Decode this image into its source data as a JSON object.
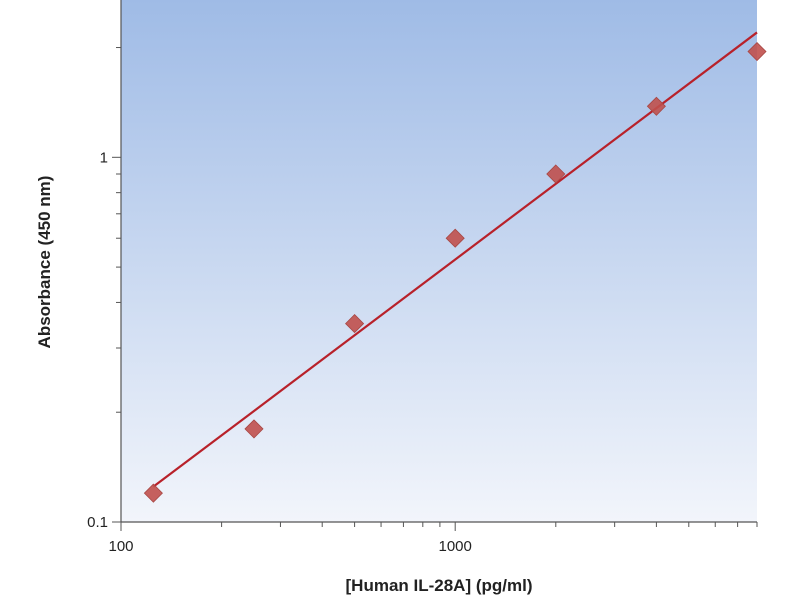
{
  "chart_data": {
    "type": "scatter",
    "title": "",
    "xlabel": "[Human IL-28A] (pg/ml)",
    "ylabel": "Absorbance (450 nm)",
    "xscale": "log",
    "yscale": "log",
    "xlim": [
      100,
      8000
    ],
    "ylim": [
      0.1,
      2.7
    ],
    "x_ticks": [
      {
        "value": 100,
        "label": "100"
      },
      {
        "value": 1000,
        "label": "1000"
      }
    ],
    "y_ticks": [
      {
        "value": 0.1,
        "label": "0.1"
      },
      {
        "value": 1,
        "label": "1"
      }
    ],
    "grid": false,
    "legend": "none",
    "series": [
      {
        "type": "scatter",
        "marker": "diamond",
        "color": "#c0504d",
        "points": [
          {
            "x": 125,
            "y": 0.12
          },
          {
            "x": 250,
            "y": 0.18
          },
          {
            "x": 500,
            "y": 0.35
          },
          {
            "x": 1000,
            "y": 0.6
          },
          {
            "x": 2000,
            "y": 0.9
          },
          {
            "x": 4000,
            "y": 1.38
          },
          {
            "x": 8000,
            "y": 1.95
          }
        ]
      },
      {
        "type": "line",
        "color": "#b8212a",
        "x": [
          125,
          8000
        ],
        "y": [
          0.125,
          2.2
        ]
      }
    ],
    "background": {
      "top": "#9fbbe6",
      "bottom": "#f2f5fb"
    }
  }
}
